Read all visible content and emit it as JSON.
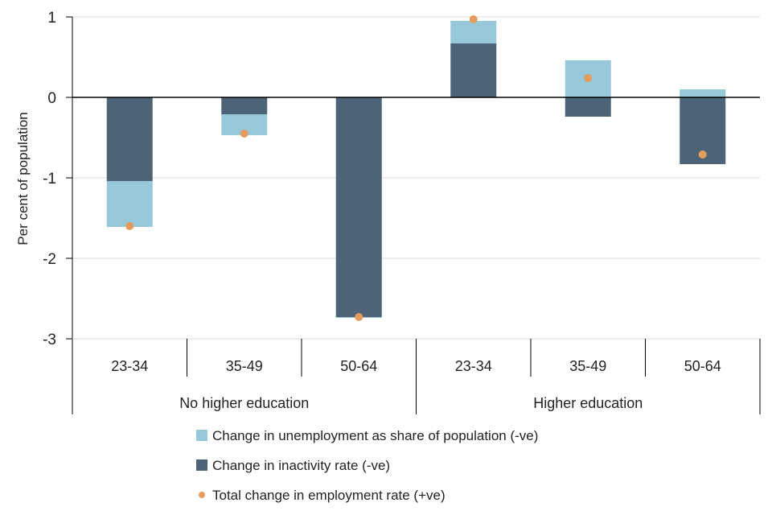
{
  "chart_data": {
    "type": "bar",
    "stacked": true,
    "title": "",
    "xlabel": "",
    "ylabel": "Per cent of population",
    "ylim": [
      -3,
      1
    ],
    "yticks": [
      1,
      0,
      -1,
      -2,
      -3
    ],
    "ytick_labels": [
      "1",
      "0",
      "-1",
      "-2",
      "-3"
    ],
    "grid": true,
    "groups": [
      {
        "label": "No higher education",
        "categories": [
          "23-34",
          "35-49",
          "50-64"
        ]
      },
      {
        "label": "Higher education",
        "categories": [
          "23-34",
          "35-49",
          "50-64"
        ]
      }
    ],
    "categories": [
      "23-34",
      "35-49",
      "50-64",
      "23-34",
      "35-49",
      "50-64"
    ],
    "series": [
      {
        "name": "Change in inactivity rate (-ve)",
        "type": "bar",
        "color": "#4d6478",
        "values": [
          -1.04,
          -0.21,
          -2.73,
          0.67,
          -0.24,
          -0.83
        ]
      },
      {
        "name": "Change in unemployment as share of population (-ve)",
        "type": "bar",
        "color": "#96c8da",
        "values": [
          -0.57,
          -0.26,
          -0.01,
          0.28,
          0.46,
          0.1
        ]
      },
      {
        "name": "Total change in employment rate (+ve)",
        "type": "point",
        "color": "#e39c5e",
        "values": [
          -1.6,
          -0.45,
          -2.73,
          0.97,
          0.24,
          -0.71
        ]
      }
    ],
    "legend": {
      "position": "bottom",
      "items": [
        {
          "label": "Change in unemployment as share of population (-ve)",
          "color": "#96c8da",
          "marker": "square"
        },
        {
          "label": "Change in inactivity rate (-ve)",
          "color": "#4d6478",
          "marker": "square"
        },
        {
          "label": "Total change in employment rate (+ve)",
          "color": "#e39c5e",
          "marker": "circle"
        }
      ]
    }
  }
}
